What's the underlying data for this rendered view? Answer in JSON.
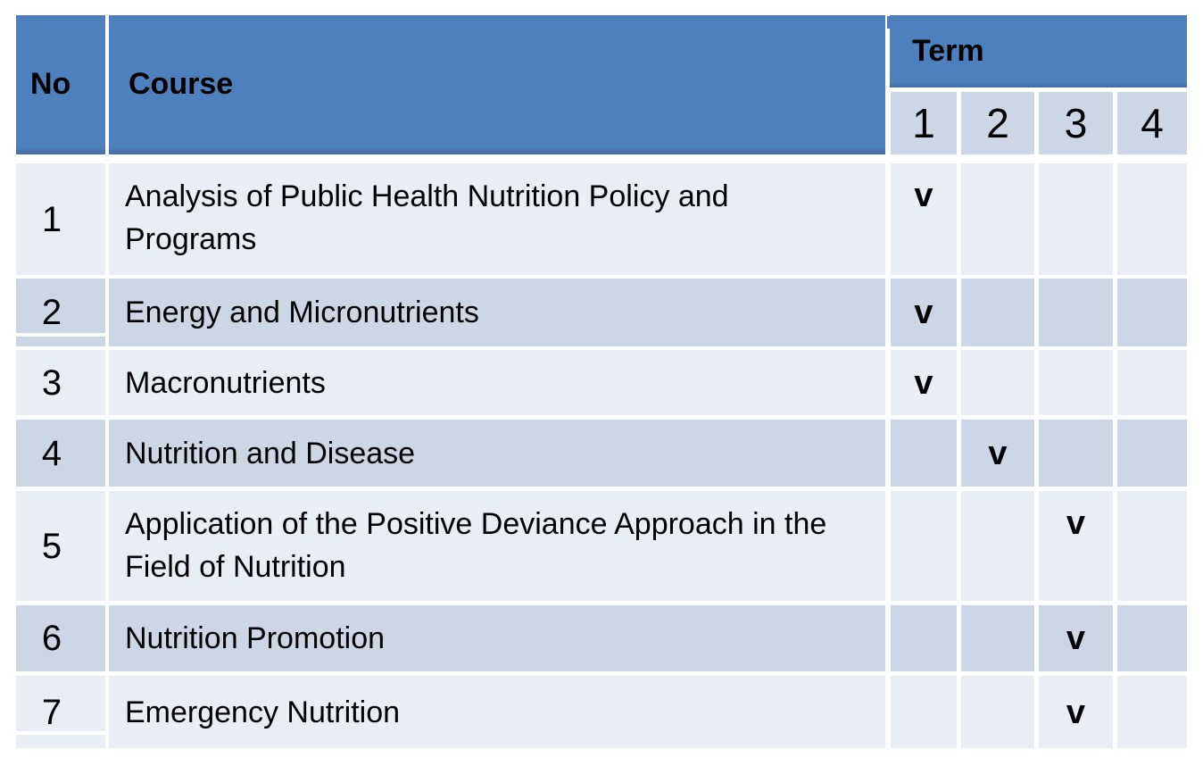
{
  "table": {
    "header": {
      "no": "No",
      "course": "Course",
      "term": "Term",
      "term_numbers": [
        "1",
        "2",
        "3",
        "4"
      ]
    },
    "check_glyph": "v",
    "rows": [
      {
        "no": "1",
        "course": "Analysis of Public Health Nutrition Policy and Programs",
        "terms": [
          "v",
          "",
          "",
          ""
        ]
      },
      {
        "no": "2",
        "course": "Energy and Micronutrients",
        "terms": [
          "v",
          "",
          "",
          ""
        ]
      },
      {
        "no": "3",
        "course": "Macronutrients",
        "terms": [
          "v",
          "",
          "",
          ""
        ]
      },
      {
        "no": "4",
        "course": "Nutrition and Disease",
        "terms": [
          "",
          "v",
          "",
          ""
        ]
      },
      {
        "no": "5",
        "course": "Application of the Positive Deviance Approach in the Field of Nutrition",
        "terms": [
          "",
          "",
          "v",
          ""
        ]
      },
      {
        "no": "6",
        "course": "Nutrition Promotion",
        "terms": [
          "",
          "",
          "v",
          ""
        ]
      },
      {
        "no": "7",
        "course": "Emergency Nutrition",
        "terms": [
          "",
          "",
          "v",
          ""
        ]
      }
    ]
  },
  "colors": {
    "header_blue": "#4d80bd",
    "row_light": "#e9edf4",
    "row_dark": "#cdd6e4",
    "text": "#000000",
    "background": "#ffffff"
  }
}
